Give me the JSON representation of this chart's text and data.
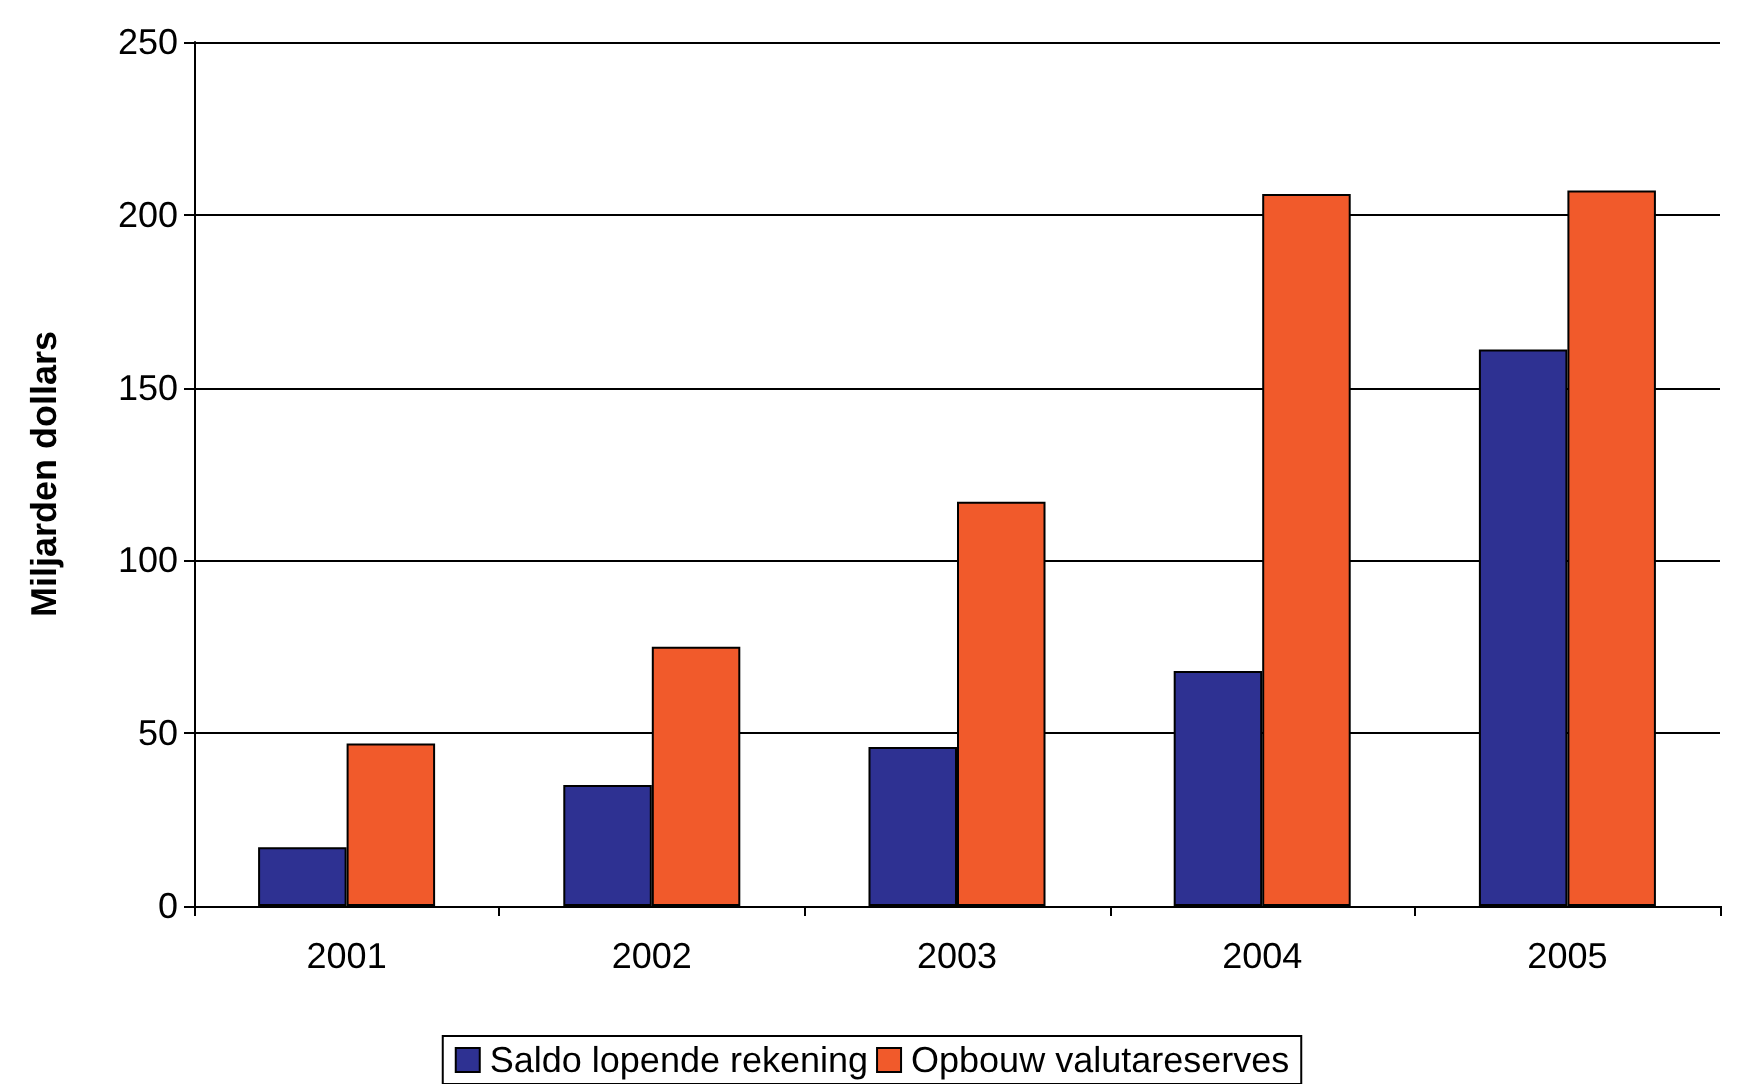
{
  "chart_data": {
    "type": "bar",
    "ylabel": "Miljarden dollars",
    "categories": [
      "2001",
      "2002",
      "2003",
      "2004",
      "2005"
    ],
    "series": [
      {
        "name": "Saldo lopende rekening",
        "color": "#2e3192",
        "values": [
          17,
          35,
          46,
          68,
          161
        ]
      },
      {
        "name": "Opbouw valutareserves",
        "color": "#f15a2b",
        "values": [
          47,
          75,
          117,
          206,
          207
        ]
      }
    ],
    "ylim": [
      0,
      250
    ],
    "yticks": [
      0,
      50,
      100,
      150,
      200,
      250
    ],
    "grid": "y",
    "legend": "bottom"
  }
}
